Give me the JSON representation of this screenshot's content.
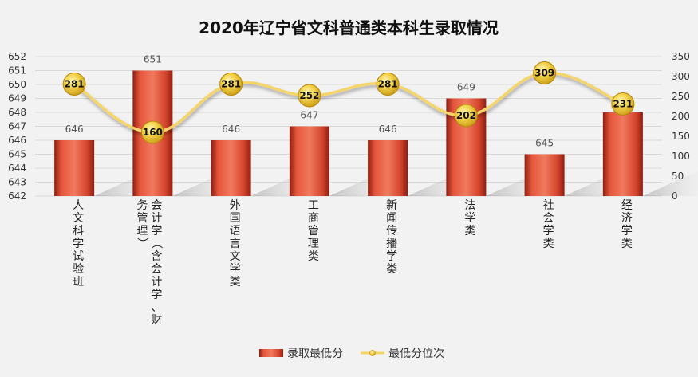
{
  "chart_data": {
    "type": "bar",
    "title": "2020年辽宁省文科普通类本科生录取情况",
    "categories": [
      "人文科学试验班",
      "会计学（含会计学、财务管理）",
      "外国语言文学类",
      "工商管理类",
      "新闻传播学类",
      "法学类",
      "社会学类",
      "经济学类"
    ],
    "category_label_columns": [
      [
        "人文科学试验班"
      ],
      [
        "会计学（含会计学、财",
        "务管理）"
      ],
      [
        "外国语言文学类"
      ],
      [
        "工商管理类"
      ],
      [
        "新闻传播学类"
      ],
      [
        "法学类"
      ],
      [
        "社会学类"
      ],
      [
        "经济学类"
      ]
    ],
    "series": [
      {
        "name": "录取最低分",
        "type": "bar",
        "axis": "left",
        "values": [
          646,
          651,
          646,
          647,
          646,
          649,
          645,
          648
        ],
        "color": "#c93a25"
      },
      {
        "name": "最低分位次",
        "type": "line",
        "axis": "right",
        "values": [
          281,
          160,
          281,
          252,
          281,
          202,
          309,
          231
        ],
        "color": "#f5d56a"
      }
    ],
    "left_axis": {
      "min": 642,
      "max": 652,
      "step": 1
    },
    "right_axis": {
      "min": 0,
      "max": 350,
      "step": 50
    },
    "legend_position": "bottom",
    "grid": true
  }
}
